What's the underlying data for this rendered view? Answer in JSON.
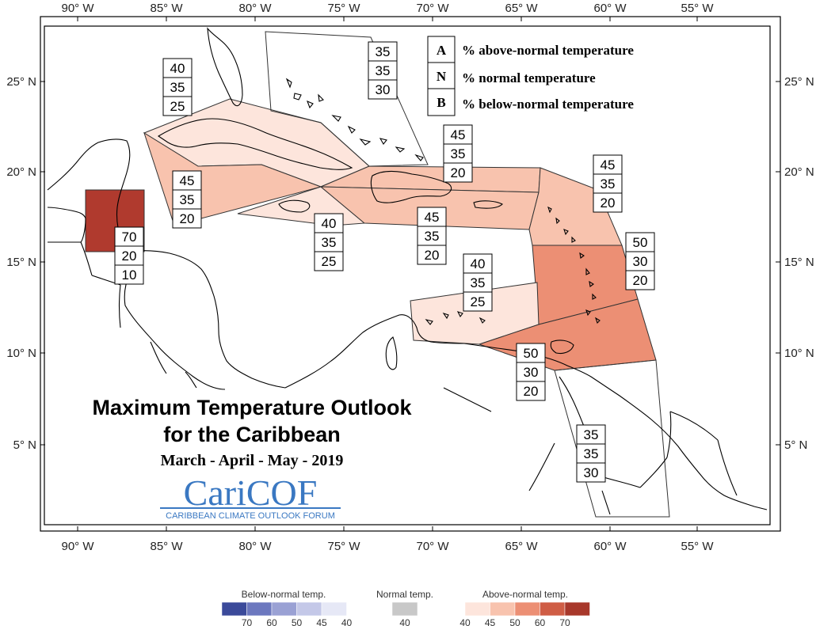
{
  "title": {
    "line1": "Maximum Temperature Outlook",
    "line2": "for the Caribbean",
    "season": "March - April - May - 2019"
  },
  "logo": {
    "name": "CariCOF",
    "subtitle": "CARIBBEAN CLIMATE OUTLOOK FORUM"
  },
  "legend_key": [
    {
      "letter": "A",
      "text": "% above-normal temperature"
    },
    {
      "letter": "N",
      "text": "% normal temperature"
    },
    {
      "letter": "B",
      "text": "% below-normal temperature"
    }
  ],
  "axes": {
    "lon_ticks": [
      "90° W",
      "85° W",
      "80° W",
      "75° W",
      "70° W",
      "65° W",
      "60° W",
      "55° W"
    ],
    "lat_ticks": [
      "25° N",
      "20° N",
      "15° N",
      "10° N",
      "5° N"
    ]
  },
  "zones": [
    {
      "id": "bahamas",
      "values": [
        "35",
        "35",
        "30"
      ],
      "category": "normal",
      "color": "#ffffff"
    },
    {
      "id": "cuba",
      "values": [
        "40",
        "35",
        "25"
      ],
      "category": "above-40",
      "color": "#fde5dc"
    },
    {
      "id": "western-caribbean",
      "values": [
        "45",
        "35",
        "20"
      ],
      "category": "above-45",
      "color": "#f8c3ae"
    },
    {
      "id": "jamaica",
      "values": [
        "40",
        "35",
        "25"
      ],
      "category": "above-40",
      "color": "#fde5dc"
    },
    {
      "id": "hispaniola-north",
      "values": [
        "45",
        "35",
        "20"
      ],
      "category": "above-45",
      "color": "#f8c3ae"
    },
    {
      "id": "hispaniola-south",
      "values": [
        "45",
        "35",
        "20"
      ],
      "category": "above-45",
      "color": "#f8c3ae"
    },
    {
      "id": "leeward-islands",
      "values": [
        "45",
        "35",
        "20"
      ],
      "category": "above-45",
      "color": "#f8c3ae"
    },
    {
      "id": "belize",
      "values": [
        "70",
        "20",
        "10"
      ],
      "category": "above-70",
      "color": "#b03a2e"
    },
    {
      "id": "windward-islands",
      "values": [
        "50",
        "30",
        "20"
      ],
      "category": "above-50",
      "color": "#ec8f74"
    },
    {
      "id": "abc-islands",
      "values": [
        "40",
        "35",
        "25"
      ],
      "category": "above-40",
      "color": "#fde5dc"
    },
    {
      "id": "trinidad",
      "values": [
        "50",
        "30",
        "20"
      ],
      "category": "above-50",
      "color": "#ec8f74"
    },
    {
      "id": "guianas",
      "values": [
        "35",
        "35",
        "30"
      ],
      "category": "normal",
      "color": "#ffffff"
    }
  ],
  "colorbar": {
    "below": {
      "title": "Below-normal temp.",
      "ticks": [
        "70",
        "60",
        "50",
        "45",
        "40"
      ],
      "colors": [
        "#3b4a9a",
        "#6c78bf",
        "#9aa1d4",
        "#c4c8e8",
        "#e6e8f6"
      ]
    },
    "normal": {
      "title": "Normal temp.",
      "ticks": [
        "40"
      ],
      "colors": [
        "#c8c8c8"
      ]
    },
    "above": {
      "title": "Above-normal temp.",
      "ticks": [
        "40",
        "45",
        "50",
        "60",
        "70"
      ],
      "colors": [
        "#fde5dc",
        "#f8c3ae",
        "#ec8f74",
        "#cf5d45",
        "#a8382b"
      ]
    }
  }
}
